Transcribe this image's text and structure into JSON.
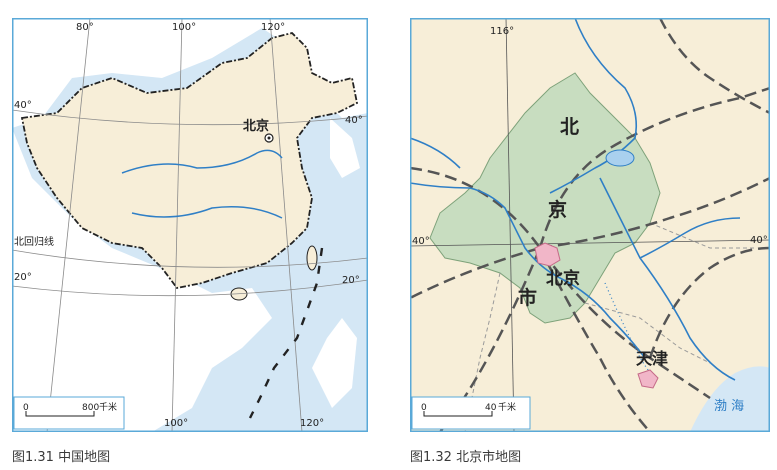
{
  "left_map": {
    "lon_labels_top": [
      "80°",
      "100°",
      "120°"
    ],
    "lon_labels_bottom": [
      "100°",
      "120°"
    ],
    "lat_labels": [
      "40°",
      "40°",
      "20°",
      "20°"
    ],
    "tropic_label": "北回归线",
    "capital_label": "北京",
    "scale_zero": "0",
    "scale_distance": "800",
    "scale_unit": "千米",
    "caption": "图1.31 中国地图"
  },
  "right_map": {
    "lon_label": "116°",
    "lat_labels": [
      "40°",
      "40°"
    ],
    "municipality_chars": [
      "北",
      "京",
      "市"
    ],
    "city_label": "北京",
    "tianjin_label": "天津",
    "sea_label": "渤 海",
    "scale_zero": "0",
    "scale_distance": "40",
    "scale_unit": "千米",
    "caption": "图1.32 北京市地图"
  },
  "colors": {
    "land": "#f7eed8",
    "sea": "#d4e7f5",
    "beijing_area": "#c8ddc0",
    "city": "#f1b6c8",
    "river": "#2f7fc6",
    "frame": "#5aa9d8",
    "border": "#222222"
  }
}
